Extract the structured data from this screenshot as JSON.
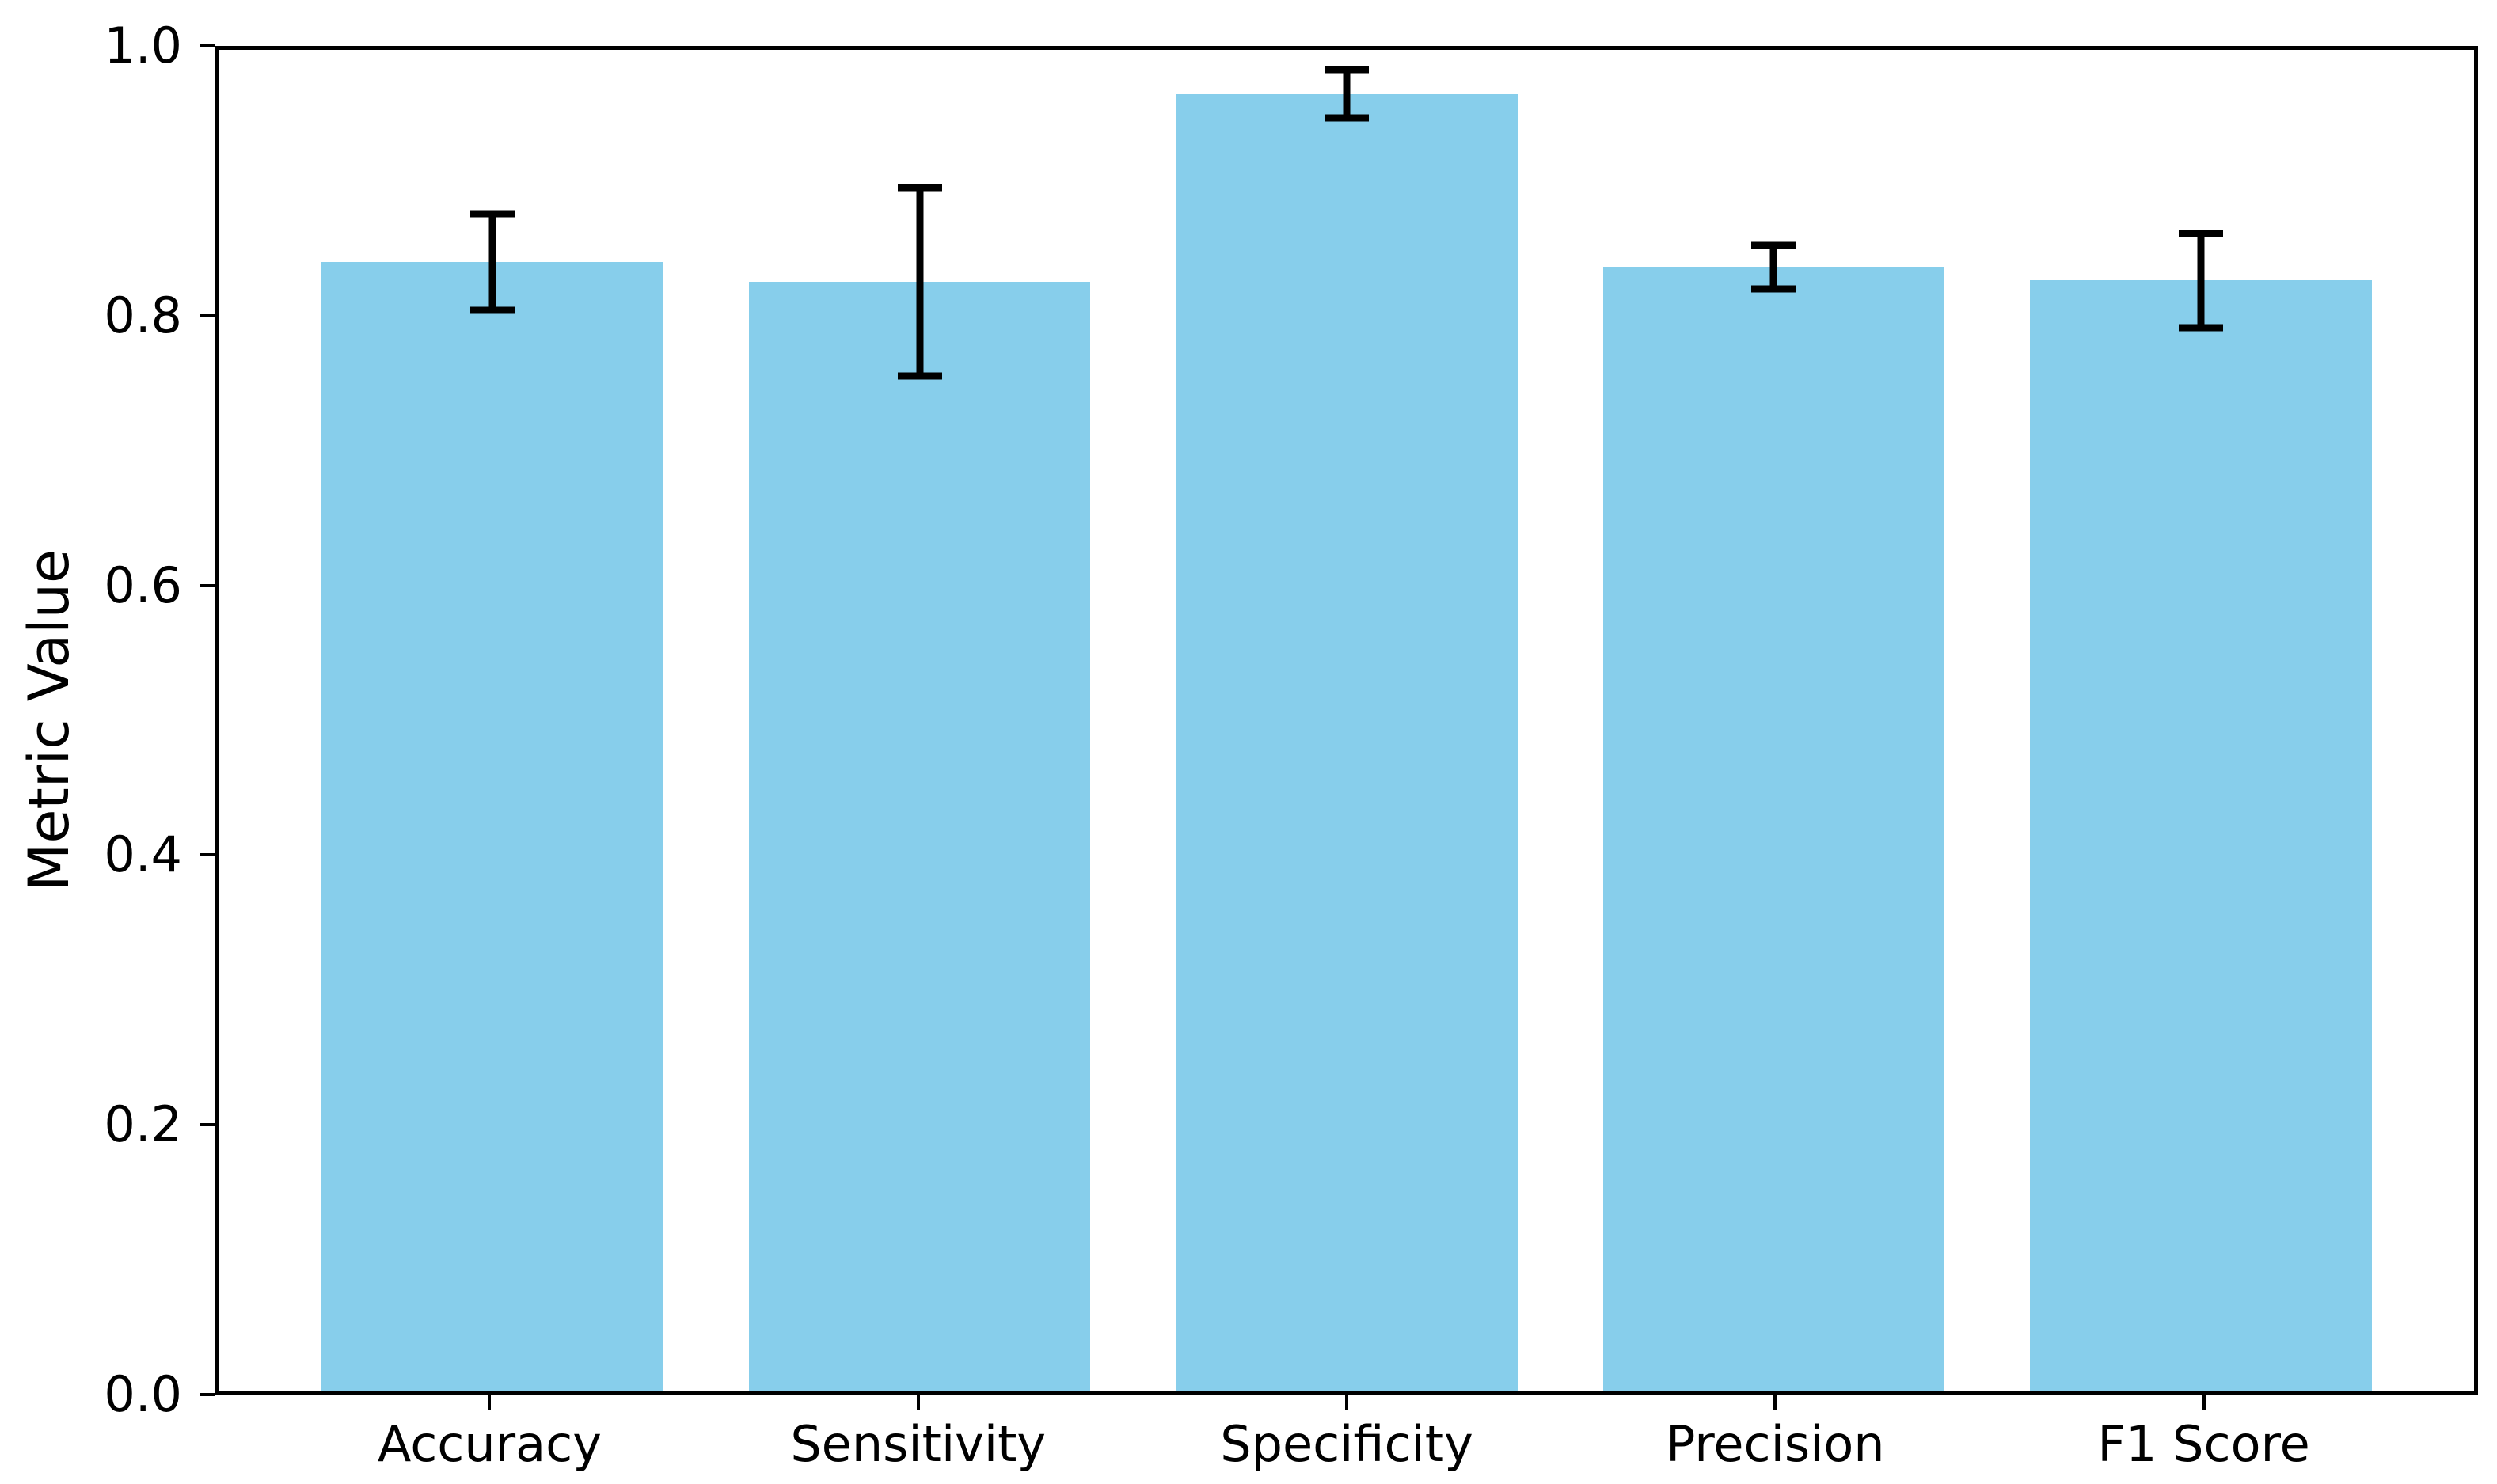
{
  "figure": {
    "background": "#ffffff"
  },
  "chart_data": {
    "type": "bar",
    "title": "",
    "xlabel": "",
    "ylabel": "Metric Value",
    "categories": [
      "Accuracy",
      "Sensitivity",
      "Specificity",
      "Precision",
      "F1 Score"
    ],
    "series": [
      {
        "name": "Metric Value",
        "values": [
          0.842,
          0.827,
          0.967,
          0.838,
          0.828
        ],
        "errors": [
          0.036,
          0.07,
          0.018,
          0.016,
          0.035
        ]
      }
    ],
    "bar_color": "#87CEEB",
    "error_bar_color": "#000000",
    "ylim": [
      0.0,
      1.0
    ],
    "xlim": [
      -0.64,
      4.64
    ],
    "bar_width_data_units": 0.8,
    "yticks": [
      0.0,
      0.2,
      0.4,
      0.6,
      0.8,
      1.0
    ],
    "ytick_labels": [
      "0.0",
      "0.2",
      "0.4",
      "0.6",
      "0.8",
      "1.0"
    ],
    "grid": false,
    "legend_position": "none",
    "plot_background": "#ffffff",
    "axis_color": "#000000"
  }
}
